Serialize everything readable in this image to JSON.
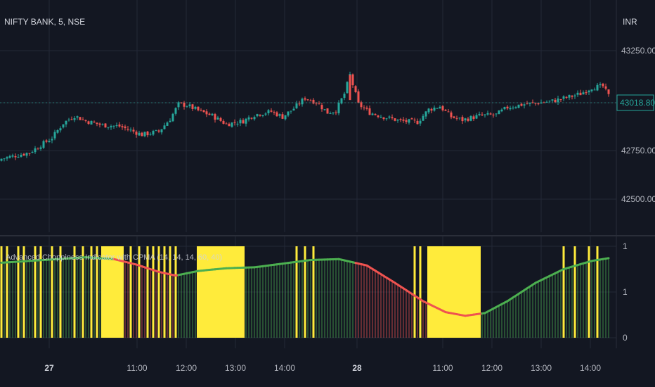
{
  "header": {
    "symbol_line": "NIFTY BANK, 5, NSE",
    "currency": "INR"
  },
  "colors": {
    "background": "#131722",
    "grid": "#232837",
    "up": "#26a69a",
    "down": "#ef5350",
    "choppy": "#ffeb3b",
    "ma_trend": "#4caf50",
    "ma_down": "#ef5350",
    "axis_text": "#b2b5be",
    "last_price": "#26a69a"
  },
  "chart_data": [
    {
      "type": "candlestick",
      "title": "NIFTY BANK, 5, NSE",
      "ylabel": "INR",
      "ylim": [
        42350,
        43430
      ],
      "y_ticks": [
        "43250.00",
        "42750.00",
        "42500.00"
      ],
      "last_price": "43018.80",
      "x_ticks": [
        "27",
        "11:00",
        "12:00",
        "13:00",
        "14:00",
        "28",
        "11:00",
        "12:00",
        "13:00",
        "14:00"
      ],
      "series": [
        {
          "close_path": [
            [
              0,
              42700
            ],
            [
              10,
              42730
            ],
            [
              18,
              42800
            ],
            [
              22,
              42870
            ],
            [
              26,
              42905
            ],
            [
              30,
              42880
            ],
            [
              36,
              42860
            ],
            [
              42,
              42855
            ],
            [
              50,
              42815
            ],
            [
              56,
              42830
            ],
            [
              60,
              42890
            ],
            [
              63,
              42960
            ],
            [
              66,
              42955
            ],
            [
              70,
              42930
            ],
            [
              75,
              42905
            ],
            [
              80,
              42865
            ],
            [
              86,
              42880
            ],
            [
              90,
              42910
            ],
            [
              96,
              42925
            ],
            [
              100,
              42900
            ],
            [
              104,
              42940
            ],
            [
              108,
              42990
            ],
            [
              112,
              42970
            ],
            [
              116,
              42920
            ],
            [
              119,
              42930
            ],
            [
              122,
              43010
            ],
            [
              124,
              43100
            ],
            [
              127,
              42960
            ],
            [
              131,
              42920
            ],
            [
              136,
              42900
            ],
            [
              142,
              42880
            ],
            [
              148,
              42875
            ],
            [
              152,
              42935
            ],
            [
              156,
              42950
            ],
            [
              160,
              42900
            ],
            [
              164,
              42885
            ],
            [
              170,
              42905
            ],
            [
              176,
              42910
            ],
            [
              180,
              42945
            ],
            [
              186,
              42960
            ],
            [
              190,
              42965
            ],
            [
              196,
              42975
            ],
            [
              202,
              42995
            ],
            [
              206,
              43010
            ],
            [
              210,
              43040
            ],
            [
              214,
              43045
            ],
            [
              216,
              43000
            ]
          ]
        }
      ]
    },
    {
      "type": "bar",
      "title": "Advanced Choppiness Indicator with CPMA (14, 14, 14, 60, 40)",
      "ylim": [
        0,
        1
      ],
      "y_ticks": [
        "1",
        "1",
        "0"
      ],
      "choppy_zones": [
        [
          36,
          43
        ],
        [
          70,
          86
        ],
        [
          152,
          170
        ]
      ],
      "choppy_spikes": [
        0,
        2,
        6,
        8,
        12,
        14,
        18,
        21,
        26,
        29,
        32,
        34,
        46,
        49,
        52,
        54,
        56,
        58,
        60,
        62,
        105,
        108,
        111,
        147,
        149,
        200,
        204,
        209,
        212
      ],
      "ma": [
        [
          0,
          0.82
        ],
        [
          15,
          0.85
        ],
        [
          30,
          0.88
        ],
        [
          40,
          0.86
        ],
        [
          48,
          0.8
        ],
        [
          56,
          0.72
        ],
        [
          62,
          0.68
        ],
        [
          70,
          0.73
        ],
        [
          80,
          0.76
        ],
        [
          90,
          0.77
        ],
        [
          100,
          0.81
        ],
        [
          110,
          0.85
        ],
        [
          120,
          0.86
        ],
        [
          130,
          0.79
        ],
        [
          140,
          0.6
        ],
        [
          150,
          0.4
        ],
        [
          158,
          0.28
        ],
        [
          165,
          0.24
        ],
        [
          172,
          0.27
        ],
        [
          180,
          0.4
        ],
        [
          190,
          0.6
        ],
        [
          200,
          0.75
        ],
        [
          210,
          0.84
        ],
        [
          216,
          0.87
        ]
      ],
      "falling_ranges": [
        [
          40,
          62
        ],
        [
          126,
          170
        ]
      ]
    }
  ]
}
